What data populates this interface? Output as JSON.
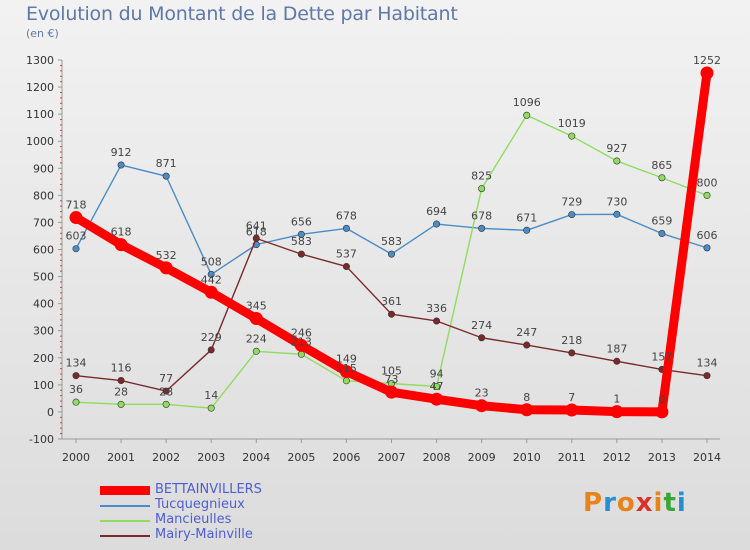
{
  "header": {
    "title": "Evolution du Montant de la Dette par Habitant",
    "subtitle": "(en €)"
  },
  "logo": {
    "text": "Proxiti",
    "colors": [
      "#e8821a",
      "#2a8fd0",
      "#e8821a",
      "#d9322a",
      "#e8821a",
      "#3aa63a",
      "#2a8fd0"
    ]
  },
  "chart_data": {
    "type": "line",
    "title": "Evolution du Montant de la Dette par Habitant",
    "subtitle": "(en €)",
    "xlabel": "",
    "ylabel": "",
    "x": [
      "2000",
      "2001",
      "2002",
      "2003",
      "2004",
      "2005",
      "2006",
      "2007",
      "2008",
      "2009",
      "2010",
      "2011",
      "2012",
      "2013",
      "2014"
    ],
    "ylim": [
      -100,
      1300
    ],
    "yticks": [
      "-100",
      "0",
      "100",
      "200",
      "300",
      "400",
      "500",
      "600",
      "700",
      "800",
      "900",
      "1000",
      "1100",
      "1200",
      "1300"
    ],
    "grid": false,
    "legend_position": "bottom-left",
    "series": [
      {
        "name": "BETTAINVILLERS",
        "color": "#ff0000",
        "values": [
          718,
          618,
          532,
          442,
          345,
          246,
          149,
          73,
          47,
          23,
          8,
          7,
          1,
          0,
          1252
        ],
        "labels": [
          "718",
          "618",
          "532",
          "442",
          "345",
          "246",
          "149",
          "73",
          "47",
          "23",
          "8",
          "7",
          "1",
          "0",
          "1252"
        ]
      },
      {
        "name": "Tucquegnieux",
        "color": "#4a8cc7",
        "values": [
          603,
          912,
          871,
          508,
          618,
          656,
          678,
          583,
          694,
          678,
          671,
          729,
          730,
          659,
          606
        ],
        "labels": [
          "603",
          "912",
          "871",
          "508",
          "618",
          "656",
          "678",
          "583",
          "694",
          "678",
          "671",
          "729",
          "730",
          "659",
          "606"
        ]
      },
      {
        "name": "Mancieulles",
        "color": "#8fdc5f",
        "values": [
          36,
          28,
          28,
          14,
          224,
          213,
          115,
          105,
          94,
          825,
          1096,
          1019,
          927,
          865,
          800
        ],
        "labels": [
          "36",
          "28",
          "28",
          "14",
          "224",
          "213",
          "115",
          "105",
          "94",
          "825",
          "1096",
          "1019",
          "927",
          "865",
          "800"
        ]
      },
      {
        "name": "Mairy-Mainville",
        "color": "#7a2a2a",
        "values": [
          134,
          116,
          77,
          229,
          641,
          583,
          537,
          361,
          336,
          274,
          247,
          218,
          187,
          157,
          134
        ],
        "labels": [
          "134",
          "116",
          "77",
          "229",
          "641",
          "583",
          "537",
          "361",
          "336",
          "274",
          "247",
          "218",
          "187",
          "157",
          "134"
        ]
      }
    ]
  }
}
